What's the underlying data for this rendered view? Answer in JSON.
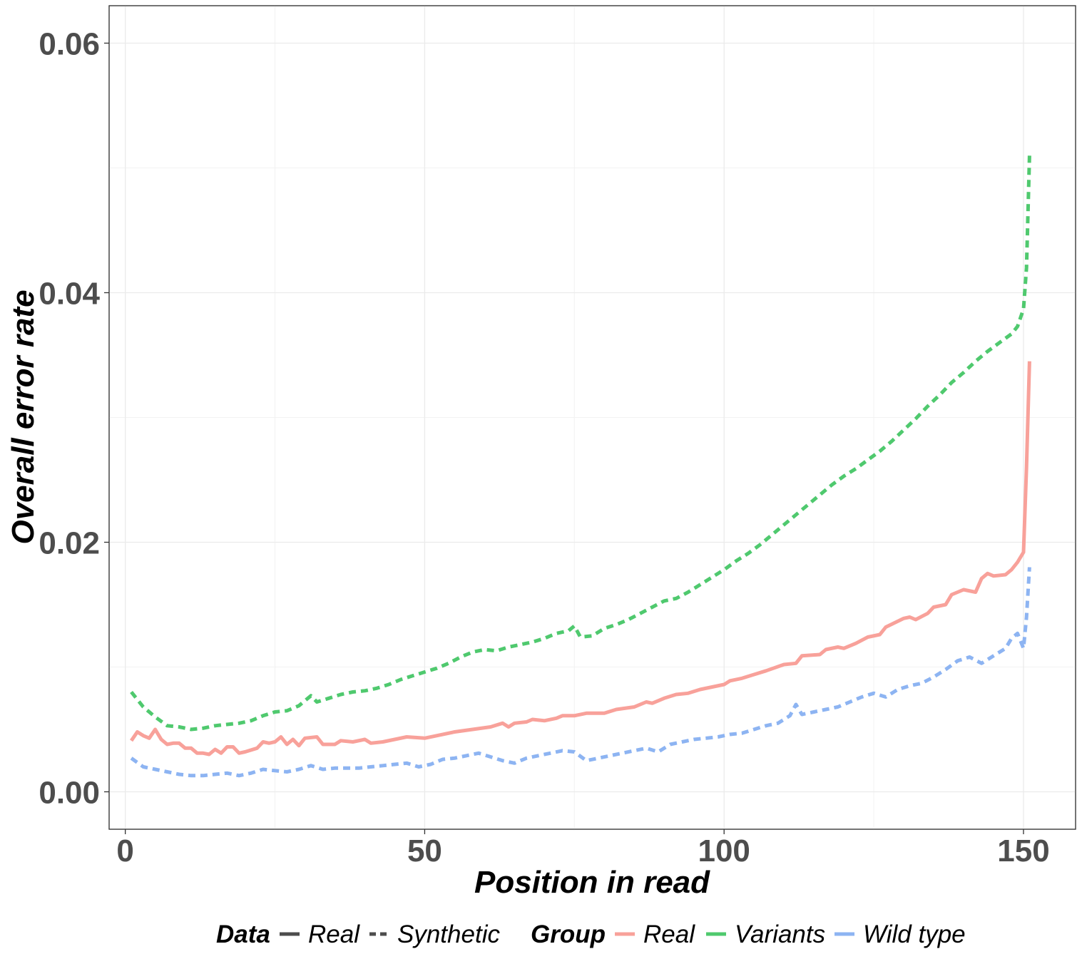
{
  "chart_data": {
    "type": "line",
    "xlabel": "Position in read",
    "ylabel": "Overall error rate",
    "xlim": [
      -2.7,
      158.7
    ],
    "ylim": [
      -0.003,
      0.063
    ],
    "x_ticks": [
      0,
      50,
      100,
      150
    ],
    "x_tick_labels": [
      "0",
      "50",
      "100",
      "150"
    ],
    "y_ticks": [
      0.0,
      0.02,
      0.04,
      0.06
    ],
    "y_tick_labels": [
      "0.00",
      "0.02",
      "0.04",
      "0.06"
    ],
    "grid": true,
    "legend_position": "bottom",
    "legend": {
      "data_title": "Data",
      "data_items": [
        {
          "label": "Real",
          "linetype": "solid"
        },
        {
          "label": "Synthetic",
          "linetype": "dashed"
        }
      ],
      "group_title": "Group",
      "group_items": [
        {
          "label": "Real",
          "color": "#F8A19A"
        },
        {
          "label": "Variants",
          "color": "#4FC96E"
        },
        {
          "label": "Wild type",
          "color": "#8DB4F2"
        }
      ]
    },
    "series": [
      {
        "group": "Real",
        "data": "Real",
        "color": "#F8A19A",
        "linetype": "solid",
        "points": [
          [
            1,
            0.0041
          ],
          [
            2,
            0.0048
          ],
          [
            3,
            0.0045
          ],
          [
            4,
            0.0043
          ],
          [
            5,
            0.005
          ],
          [
            6,
            0.0042
          ],
          [
            7,
            0.0038
          ],
          [
            8,
            0.0039
          ],
          [
            9,
            0.0039
          ],
          [
            10,
            0.0035
          ],
          [
            11,
            0.0035
          ],
          [
            12,
            0.0031
          ],
          [
            13,
            0.0031
          ],
          [
            14,
            0.003
          ],
          [
            15,
            0.0034
          ],
          [
            16,
            0.0031
          ],
          [
            17,
            0.0036
          ],
          [
            18,
            0.0036
          ],
          [
            19,
            0.0031
          ],
          [
            20,
            0.0032
          ],
          [
            22,
            0.0035
          ],
          [
            23,
            0.004
          ],
          [
            24,
            0.0039
          ],
          [
            25,
            0.004
          ],
          [
            26,
            0.0044
          ],
          [
            27,
            0.0038
          ],
          [
            28,
            0.0042
          ],
          [
            29,
            0.0037
          ],
          [
            30,
            0.0043
          ],
          [
            32,
            0.0044
          ],
          [
            33,
            0.0038
          ],
          [
            35,
            0.0038
          ],
          [
            36,
            0.0041
          ],
          [
            38,
            0.004
          ],
          [
            40,
            0.0042
          ],
          [
            41,
            0.0039
          ],
          [
            43,
            0.004
          ],
          [
            45,
            0.0042
          ],
          [
            47,
            0.0044
          ],
          [
            50,
            0.0043
          ],
          [
            52,
            0.0045
          ],
          [
            55,
            0.0048
          ],
          [
            58,
            0.005
          ],
          [
            61,
            0.0052
          ],
          [
            63,
            0.0055
          ],
          [
            64,
            0.0052
          ],
          [
            65,
            0.0055
          ],
          [
            67,
            0.0056
          ],
          [
            68,
            0.0058
          ],
          [
            70,
            0.0057
          ],
          [
            72,
            0.0059
          ],
          [
            73,
            0.0061
          ],
          [
            75,
            0.0061
          ],
          [
            77,
            0.0063
          ],
          [
            80,
            0.0063
          ],
          [
            82,
            0.0066
          ],
          [
            85,
            0.0068
          ],
          [
            87,
            0.0072
          ],
          [
            88,
            0.0071
          ],
          [
            90,
            0.0075
          ],
          [
            92,
            0.0078
          ],
          [
            94,
            0.0079
          ],
          [
            96,
            0.0082
          ],
          [
            98,
            0.0084
          ],
          [
            100,
            0.0086
          ],
          [
            101,
            0.0089
          ],
          [
            103,
            0.0091
          ],
          [
            105,
            0.0094
          ],
          [
            107,
            0.0097
          ],
          [
            110,
            0.0102
          ],
          [
            112,
            0.0103
          ],
          [
            113,
            0.0109
          ],
          [
            116,
            0.011
          ],
          [
            117,
            0.0114
          ],
          [
            119,
            0.0116
          ],
          [
            120,
            0.0115
          ],
          [
            122,
            0.0119
          ],
          [
            124,
            0.0124
          ],
          [
            126,
            0.0126
          ],
          [
            127,
            0.0132
          ],
          [
            130,
            0.0139
          ],
          [
            131,
            0.014
          ],
          [
            132,
            0.0138
          ],
          [
            134,
            0.0143
          ],
          [
            135,
            0.0148
          ],
          [
            137,
            0.015
          ],
          [
            138,
            0.0158
          ],
          [
            140,
            0.0162
          ],
          [
            142,
            0.016
          ],
          [
            143,
            0.0171
          ],
          [
            144,
            0.0175
          ],
          [
            145,
            0.0173
          ],
          [
            147,
            0.0174
          ],
          [
            148,
            0.0178
          ],
          [
            149,
            0.0184
          ],
          [
            150,
            0.0192
          ],
          [
            150.5,
            0.026
          ],
          [
            151,
            0.0345
          ]
        ]
      },
      {
        "group": "Variants",
        "data": "Synthetic",
        "color": "#4FC96E",
        "linetype": "dashed",
        "points": [
          [
            1,
            0.008
          ],
          [
            3,
            0.0068
          ],
          [
            5,
            0.006
          ],
          [
            7,
            0.0053
          ],
          [
            9,
            0.0052
          ],
          [
            11,
            0.005
          ],
          [
            13,
            0.0051
          ],
          [
            15,
            0.0053
          ],
          [
            17,
            0.0054
          ],
          [
            19,
            0.0055
          ],
          [
            21,
            0.0057
          ],
          [
            23,
            0.0061
          ],
          [
            25,
            0.0064
          ],
          [
            27,
            0.0065
          ],
          [
            29,
            0.0069
          ],
          [
            31,
            0.0077
          ],
          [
            32,
            0.0072
          ],
          [
            34,
            0.0075
          ],
          [
            36,
            0.0078
          ],
          [
            38,
            0.008
          ],
          [
            40,
            0.0081
          ],
          [
            42,
            0.0083
          ],
          [
            44,
            0.0086
          ],
          [
            46,
            0.009
          ],
          [
            48,
            0.0093
          ],
          [
            50,
            0.0096
          ],
          [
            52,
            0.0099
          ],
          [
            54,
            0.0103
          ],
          [
            56,
            0.0108
          ],
          [
            58,
            0.0112
          ],
          [
            60,
            0.0114
          ],
          [
            62,
            0.0113
          ],
          [
            64,
            0.0116
          ],
          [
            66,
            0.0118
          ],
          [
            68,
            0.012
          ],
          [
            70,
            0.0123
          ],
          [
            72,
            0.0127
          ],
          [
            74,
            0.0129
          ],
          [
            75,
            0.0133
          ],
          [
            76,
            0.0124
          ],
          [
            78,
            0.0125
          ],
          [
            80,
            0.0131
          ],
          [
            82,
            0.0134
          ],
          [
            84,
            0.0138
          ],
          [
            86,
            0.0143
          ],
          [
            88,
            0.0148
          ],
          [
            90,
            0.0153
          ],
          [
            92,
            0.0155
          ],
          [
            94,
            0.016
          ],
          [
            96,
            0.0166
          ],
          [
            98,
            0.0172
          ],
          [
            100,
            0.0178
          ],
          [
            102,
            0.0185
          ],
          [
            104,
            0.0191
          ],
          [
            106,
            0.0198
          ],
          [
            108,
            0.0206
          ],
          [
            110,
            0.0214
          ],
          [
            112,
            0.0222
          ],
          [
            114,
            0.023
          ],
          [
            116,
            0.0238
          ],
          [
            118,
            0.0246
          ],
          [
            120,
            0.0253
          ],
          [
            122,
            0.0259
          ],
          [
            124,
            0.0266
          ],
          [
            126,
            0.0273
          ],
          [
            128,
            0.0281
          ],
          [
            130,
            0.029
          ],
          [
            132,
            0.0299
          ],
          [
            134,
            0.0309
          ],
          [
            136,
            0.0318
          ],
          [
            138,
            0.0328
          ],
          [
            140,
            0.0336
          ],
          [
            142,
            0.0345
          ],
          [
            144,
            0.0353
          ],
          [
            146,
            0.036
          ],
          [
            148,
            0.0367
          ],
          [
            149,
            0.0373
          ],
          [
            150,
            0.0387
          ],
          [
            150.5,
            0.042
          ],
          [
            151,
            0.051
          ]
        ]
      },
      {
        "group": "Wild type",
        "data": "Synthetic",
        "color": "#8DB4F2",
        "linetype": "dashed",
        "points": [
          [
            1,
            0.0027
          ],
          [
            3,
            0.002
          ],
          [
            5,
            0.0018
          ],
          [
            7,
            0.0016
          ],
          [
            9,
            0.0014
          ],
          [
            11,
            0.0013
          ],
          [
            13,
            0.0013
          ],
          [
            15,
            0.0014
          ],
          [
            17,
            0.0015
          ],
          [
            19,
            0.0013
          ],
          [
            21,
            0.0015
          ],
          [
            23,
            0.0018
          ],
          [
            25,
            0.0017
          ],
          [
            27,
            0.0016
          ],
          [
            29,
            0.0018
          ],
          [
            31,
            0.0021
          ],
          [
            33,
            0.0018
          ],
          [
            35,
            0.0019
          ],
          [
            37,
            0.0019
          ],
          [
            39,
            0.0019
          ],
          [
            41,
            0.002
          ],
          [
            43,
            0.0021
          ],
          [
            45,
            0.0022
          ],
          [
            47,
            0.0023
          ],
          [
            49,
            0.002
          ],
          [
            51,
            0.0022
          ],
          [
            53,
            0.0026
          ],
          [
            55,
            0.0027
          ],
          [
            57,
            0.0029
          ],
          [
            59,
            0.0031
          ],
          [
            61,
            0.0028
          ],
          [
            63,
            0.0025
          ],
          [
            65,
            0.0023
          ],
          [
            67,
            0.0027
          ],
          [
            69,
            0.0029
          ],
          [
            71,
            0.0031
          ],
          [
            73,
            0.0033
          ],
          [
            75,
            0.0032
          ],
          [
            77,
            0.0025
          ],
          [
            79,
            0.0027
          ],
          [
            81,
            0.0029
          ],
          [
            83,
            0.0031
          ],
          [
            85,
            0.0033
          ],
          [
            87,
            0.0035
          ],
          [
            89,
            0.0032
          ],
          [
            91,
            0.0038
          ],
          [
            93,
            0.004
          ],
          [
            95,
            0.0042
          ],
          [
            97,
            0.0043
          ],
          [
            99,
            0.0044
          ],
          [
            101,
            0.0046
          ],
          [
            103,
            0.0047
          ],
          [
            105,
            0.005
          ],
          [
            107,
            0.0053
          ],
          [
            109,
            0.0055
          ],
          [
            111,
            0.0061
          ],
          [
            112,
            0.007
          ],
          [
            113,
            0.0062
          ],
          [
            115,
            0.0064
          ],
          [
            117,
            0.0066
          ],
          [
            119,
            0.0068
          ],
          [
            121,
            0.0072
          ],
          [
            123,
            0.0076
          ],
          [
            125,
            0.0079
          ],
          [
            127,
            0.0076
          ],
          [
            129,
            0.0082
          ],
          [
            131,
            0.0085
          ],
          [
            133,
            0.0087
          ],
          [
            135,
            0.0092
          ],
          [
            137,
            0.0098
          ],
          [
            139,
            0.0105
          ],
          [
            141,
            0.0108
          ],
          [
            143,
            0.0103
          ],
          [
            145,
            0.0109
          ],
          [
            147,
            0.0115
          ],
          [
            148,
            0.0123
          ],
          [
            149,
            0.0127
          ],
          [
            150,
            0.0115
          ],
          [
            150.5,
            0.014
          ],
          [
            151,
            0.018
          ]
        ]
      }
    ]
  }
}
